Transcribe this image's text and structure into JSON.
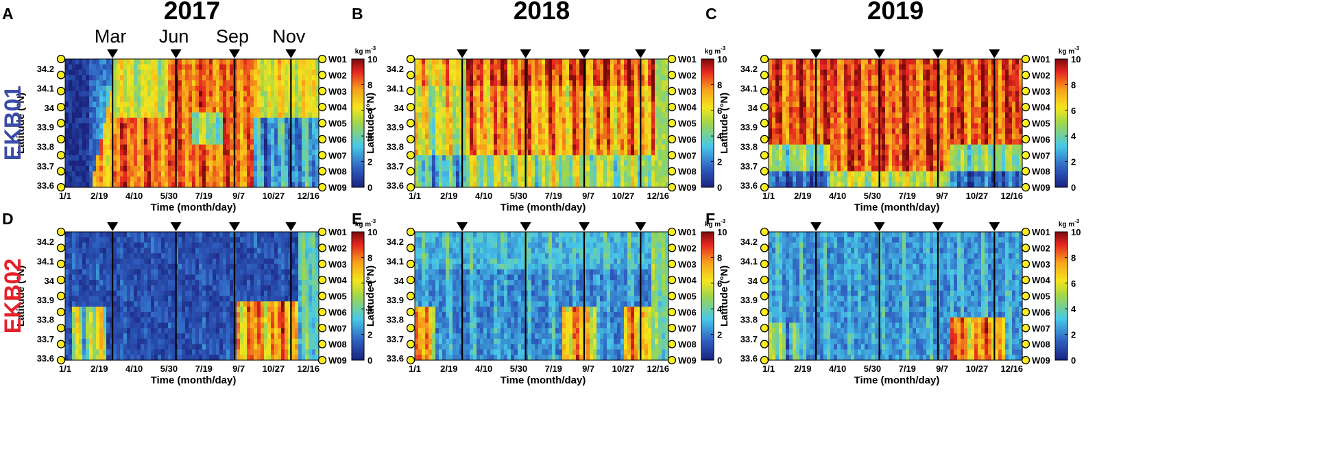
{
  "chart_data": {
    "type": "heatmap",
    "year_titles": [
      "2017",
      "2018",
      "2019"
    ],
    "row_labels": [
      {
        "label": "EKB01",
        "color": "#3b4ba8"
      },
      {
        "label": "EKB02",
        "color": "#e8202a"
      }
    ],
    "month_markers": [
      "Mar",
      "Jun",
      "Sep",
      "Nov"
    ],
    "marker_doy": [
      69,
      160,
      244,
      325
    ],
    "x_ticks": [
      "1/1",
      "2/19",
      "4/10",
      "5/30",
      "7/19",
      "9/7",
      "10/27",
      "12/16"
    ],
    "x_tick_doy": [
      1,
      50,
      100,
      150,
      200,
      250,
      300,
      350
    ],
    "xlim_doy": [
      1,
      365
    ],
    "xlabel": "Time (month/day)",
    "ylabel": "Latitude (°N)",
    "y_ticks": [
      "34.2",
      "34.1",
      "34",
      "33.9",
      "33.8",
      "33.7",
      "33.6"
    ],
    "y_tick_values": [
      34.2,
      34.1,
      34.0,
      33.9,
      33.8,
      33.7,
      33.6
    ],
    "ylim": [
      33.59,
      34.25
    ],
    "stations": [
      "W01",
      "W02",
      "W03",
      "W04",
      "W05",
      "W06",
      "W07",
      "W08",
      "W09"
    ],
    "colorbar": {
      "unit": "kg m",
      "unit_exp": "-3",
      "ticks": [
        "10",
        "8",
        "6",
        "4",
        "2",
        "0"
      ],
      "min": 0,
      "max": 10
    },
    "panels": [
      {
        "letter": "A",
        "row": 0,
        "col": 0,
        "year": "2017",
        "mean_concentration": 6.3
      },
      {
        "letter": "B",
        "row": 0,
        "col": 1,
        "year": "2018",
        "mean_concentration": 7.2
      },
      {
        "letter": "C",
        "row": 0,
        "col": 2,
        "year": "2019",
        "mean_concentration": 7.9
      },
      {
        "letter": "D",
        "row": 1,
        "col": 0,
        "year": "2017",
        "mean_concentration": 2.2
      },
      {
        "letter": "E",
        "row": 1,
        "col": 1,
        "year": "2018",
        "mean_concentration": 2.9
      },
      {
        "letter": "F",
        "row": 1,
        "col": 2,
        "year": "2019",
        "mean_concentration": 2.4
      }
    ]
  }
}
